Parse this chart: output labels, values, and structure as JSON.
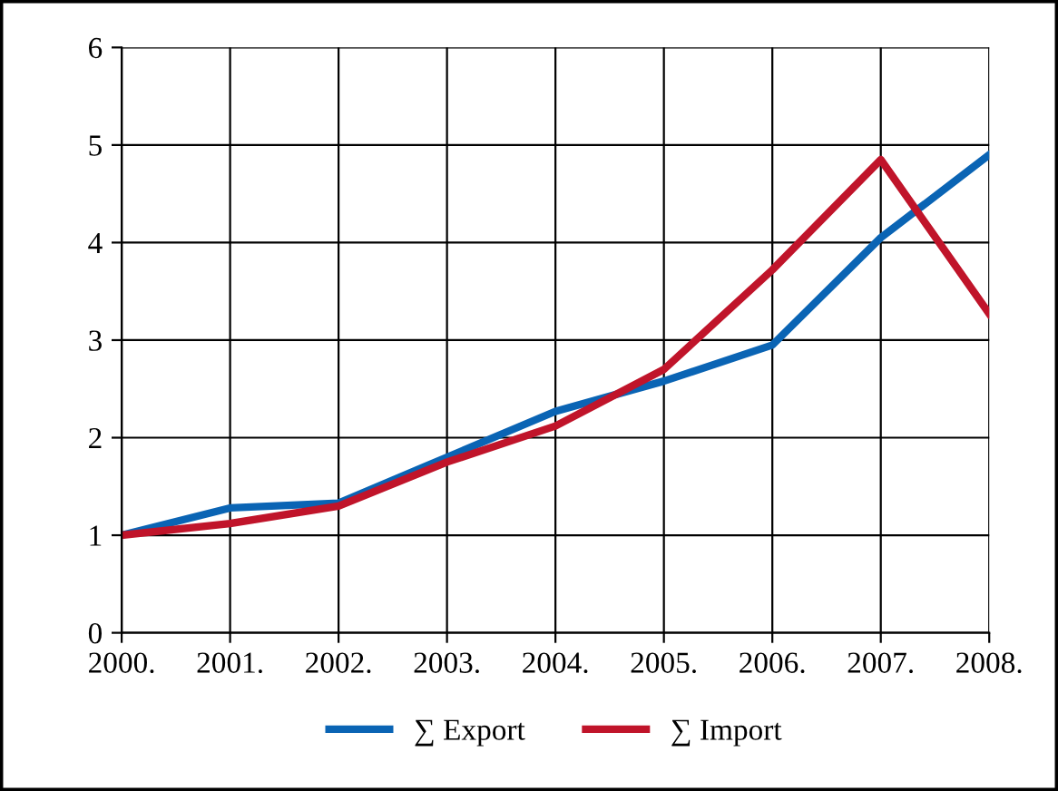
{
  "chart_data": {
    "type": "line",
    "categories": [
      "2000.",
      "2001.",
      "2002.",
      "2003.",
      "2004.",
      "2005.",
      "2006.",
      "2007.",
      "2008."
    ],
    "series": [
      {
        "name": "∑ Export",
        "color": "#0a64b4",
        "values": [
          1,
          1.28,
          1.33,
          1.8,
          2.27,
          2.58,
          2.95,
          4.05,
          4.9
        ]
      },
      {
        "name": "∑ Import",
        "color": "#c0142a",
        "values": [
          1,
          1.12,
          1.3,
          1.75,
          2.12,
          2.7,
          3.72,
          4.85,
          3.27
        ]
      }
    ],
    "ylim": [
      0,
      6
    ],
    "yticks": [
      0,
      1,
      2,
      3,
      4,
      5,
      6
    ],
    "grid": true,
    "legend": "bottom",
    "marker": "none",
    "line_style": "solid"
  }
}
